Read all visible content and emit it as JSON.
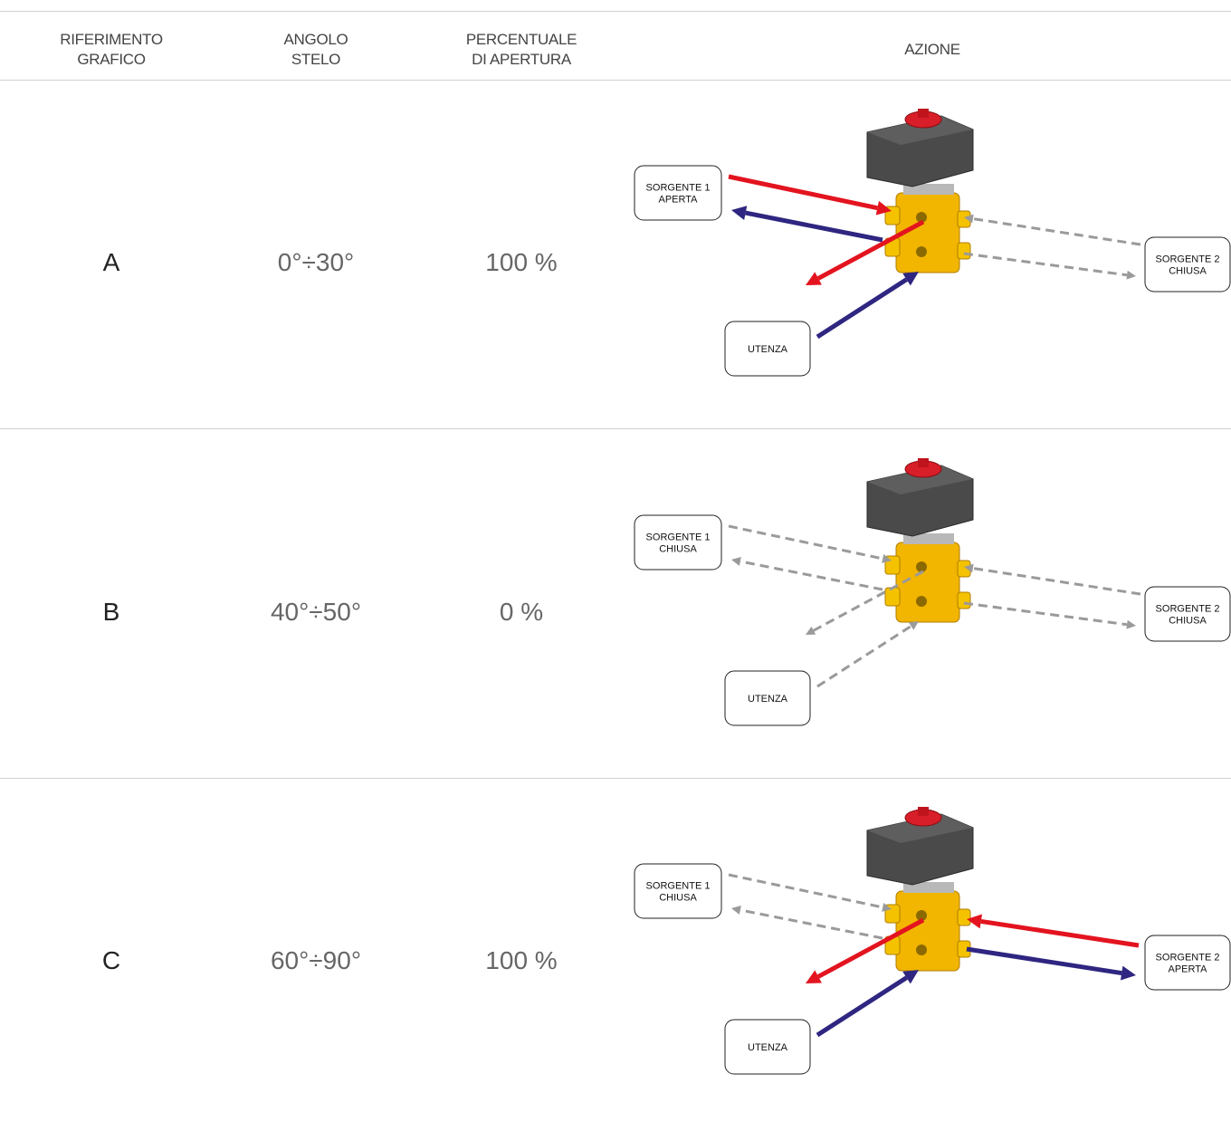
{
  "header": {
    "columns": [
      [
        "RIFERIMENTO",
        "GRAFICO"
      ],
      [
        "ANGOLO",
        "STELO"
      ],
      [
        "PERCENTUALE",
        "DI APERTURA"
      ],
      [
        "AZIONE"
      ]
    ]
  },
  "rows": [
    {
      "ref": "A",
      "angle": "0°÷30°",
      "opening": "100 %",
      "diagram": {
        "source1": [
          "SORGENTE 1",
          "APERTA"
        ],
        "source2": [
          "SORGENTE 2",
          "CHIUSA"
        ],
        "user": "UTENZA"
      }
    },
    {
      "ref": "B",
      "angle": "40°÷50°",
      "opening": "0 %",
      "diagram": {
        "source1": [
          "SORGENTE 1",
          "CHIUSA"
        ],
        "source2": [
          "SORGENTE 2",
          "CHIUSA"
        ],
        "user": "UTENZA"
      }
    },
    {
      "ref": "C",
      "angle": "60°÷90°",
      "opening": "100 %",
      "diagram": {
        "source1": [
          "SORGENTE 1",
          "CHIUSA"
        ],
        "source2": [
          "SORGENTE 2",
          "APERTA"
        ],
        "user": "UTENZA"
      }
    }
  ]
}
